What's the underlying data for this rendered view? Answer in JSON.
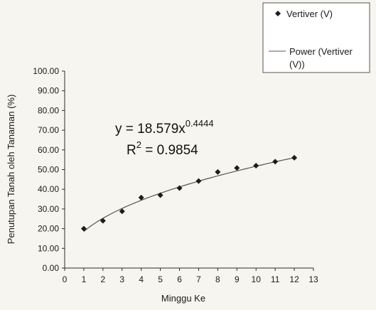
{
  "chart_data": {
    "type": "scatter",
    "x": [
      1,
      2,
      3,
      4,
      5,
      6,
      7,
      8,
      9,
      10,
      11,
      12
    ],
    "series": [
      {
        "name": "Vertiver (V)",
        "marker": "diamond",
        "values": [
          20.0,
          24.0,
          28.8,
          35.8,
          37.0,
          40.6,
          44.2,
          48.8,
          50.8,
          52.0,
          54.0,
          56.0
        ]
      }
    ],
    "trendline": {
      "name": "Power (Vertiver (V))",
      "legend_lines": [
        "Power (Vertiver",
        "(V))"
      ],
      "type": "power",
      "coefficient": 18.579,
      "exponent": 0.4444,
      "r_squared": 0.9854,
      "equation_prefix": "y = 18.579x",
      "equation_exponent": "0.4444",
      "r2_prefix": "R",
      "r2_sup": "2",
      "r2_value": " = 0.9854"
    },
    "xlabel": "Minggu Ke",
    "ylabel": "Penutupan Tanah oleh Tanaman (%)",
    "xlim": [
      0,
      13
    ],
    "ylim": [
      0,
      100
    ],
    "x_ticks": [
      "0",
      "1",
      "2",
      "3",
      "4",
      "5",
      "6",
      "7",
      "8",
      "9",
      "10",
      "11",
      "12",
      "13"
    ],
    "y_ticks": [
      "0.00",
      "10.00",
      "20.00",
      "30.00",
      "40.00",
      "50.00",
      "60.00",
      "70.00",
      "80.00",
      "90.00",
      "100.00"
    ],
    "grid": false,
    "legend_position": "top-right",
    "colors": {
      "marker": "#1c1c1c",
      "trendline": "#555555",
      "axis": "#2a2a2a"
    }
  }
}
